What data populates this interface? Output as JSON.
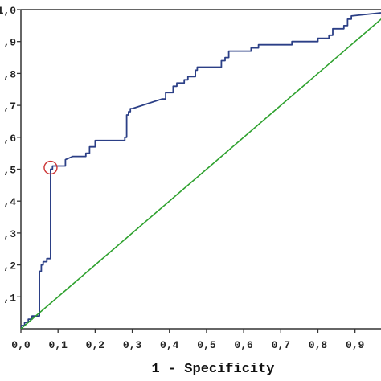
{
  "chart_data": {
    "type": "line",
    "title": "",
    "xlabel": "1 - Specificity",
    "ylabel": "",
    "xlim": [
      0,
      0.97
    ],
    "ylim": [
      0,
      1.0
    ],
    "grid": false,
    "x_ticks": [
      0.0,
      0.1,
      0.2,
      0.3,
      0.4,
      0.5,
      0.6,
      0.7,
      0.8,
      0.9
    ],
    "x_tick_labels": [
      "0,0",
      "0,1",
      "0,2",
      "0,3",
      "0,4",
      "0,5",
      "0,6",
      "0,7",
      "0,8",
      "0,9"
    ],
    "y_ticks": [
      0.1,
      0.2,
      0.3,
      0.4,
      0.5,
      0.6,
      0.7,
      0.8,
      0.9,
      1.0
    ],
    "y_tick_labels": [
      ",1",
      ",2",
      ",3",
      ",4",
      ",5",
      ",6",
      ",7",
      ",8",
      ",9",
      "1,0"
    ],
    "colors": {
      "roc": "#2b3f86",
      "reference": "#2ea12e",
      "marker": "#cc3333",
      "axes": "#333333"
    },
    "series": [
      {
        "role": "roc",
        "points": [
          [
            0.0,
            0.0
          ],
          [
            0.0,
            0.01
          ],
          [
            0.01,
            0.01
          ],
          [
            0.01,
            0.02
          ],
          [
            0.02,
            0.02
          ],
          [
            0.02,
            0.03
          ],
          [
            0.03,
            0.03
          ],
          [
            0.03,
            0.04
          ],
          [
            0.05,
            0.04
          ],
          [
            0.05,
            0.18
          ],
          [
            0.055,
            0.18
          ],
          [
            0.055,
            0.2
          ],
          [
            0.06,
            0.2
          ],
          [
            0.06,
            0.21
          ],
          [
            0.07,
            0.21
          ],
          [
            0.07,
            0.22
          ],
          [
            0.08,
            0.22
          ],
          [
            0.08,
            0.5
          ],
          [
            0.085,
            0.5
          ],
          [
            0.085,
            0.51
          ],
          [
            0.12,
            0.51
          ],
          [
            0.12,
            0.53
          ],
          [
            0.14,
            0.54
          ],
          [
            0.175,
            0.54
          ],
          [
            0.175,
            0.55
          ],
          [
            0.185,
            0.55
          ],
          [
            0.185,
            0.57
          ],
          [
            0.2,
            0.57
          ],
          [
            0.2,
            0.59
          ],
          [
            0.28,
            0.59
          ],
          [
            0.28,
            0.6
          ],
          [
            0.285,
            0.6
          ],
          [
            0.285,
            0.67
          ],
          [
            0.29,
            0.67
          ],
          [
            0.29,
            0.68
          ],
          [
            0.295,
            0.68
          ],
          [
            0.295,
            0.69
          ],
          [
            0.3,
            0.69
          ],
          [
            0.38,
            0.72
          ],
          [
            0.39,
            0.72
          ],
          [
            0.39,
            0.74
          ],
          [
            0.41,
            0.74
          ],
          [
            0.41,
            0.76
          ],
          [
            0.42,
            0.76
          ],
          [
            0.42,
            0.77
          ],
          [
            0.44,
            0.77
          ],
          [
            0.44,
            0.78
          ],
          [
            0.45,
            0.78
          ],
          [
            0.45,
            0.79
          ],
          [
            0.47,
            0.79
          ],
          [
            0.47,
            0.81
          ],
          [
            0.475,
            0.81
          ],
          [
            0.475,
            0.82
          ],
          [
            0.54,
            0.82
          ],
          [
            0.54,
            0.84
          ],
          [
            0.55,
            0.84
          ],
          [
            0.55,
            0.85
          ],
          [
            0.56,
            0.85
          ],
          [
            0.56,
            0.87
          ],
          [
            0.62,
            0.87
          ],
          [
            0.62,
            0.88
          ],
          [
            0.64,
            0.88
          ],
          [
            0.64,
            0.89
          ],
          [
            0.73,
            0.89
          ],
          [
            0.73,
            0.9
          ],
          [
            0.8,
            0.9
          ],
          [
            0.8,
            0.91
          ],
          [
            0.83,
            0.91
          ],
          [
            0.83,
            0.92
          ],
          [
            0.84,
            0.92
          ],
          [
            0.84,
            0.94
          ],
          [
            0.87,
            0.94
          ],
          [
            0.87,
            0.95
          ],
          [
            0.88,
            0.95
          ],
          [
            0.88,
            0.97
          ],
          [
            0.89,
            0.97
          ],
          [
            0.89,
            0.98
          ],
          [
            0.97,
            0.99
          ]
        ]
      },
      {
        "role": "reference",
        "points": [
          [
            0.0,
            0.0
          ],
          [
            1.0,
            1.0
          ]
        ]
      }
    ],
    "annotations": [
      {
        "type": "circle-marker",
        "x": 0.08,
        "y": 0.505
      }
    ]
  }
}
